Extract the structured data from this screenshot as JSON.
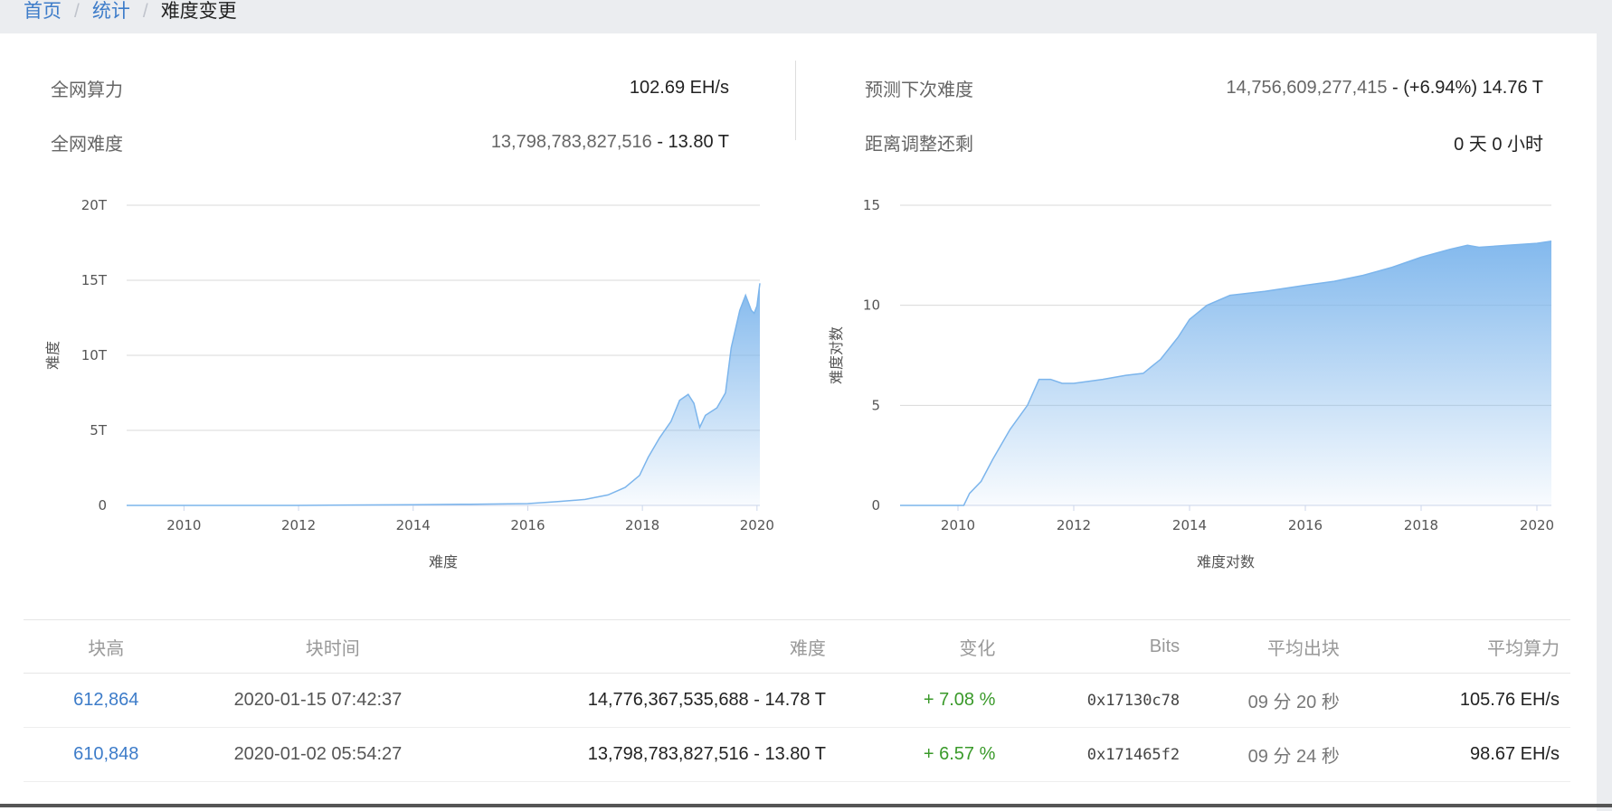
{
  "breadcrumb": {
    "home": "首页",
    "stats": "统计",
    "current": "难度变更"
  },
  "stats": {
    "hashrate_label": "全网算力",
    "hashrate_value": "102.69 EH/s",
    "difficulty_label": "全网难度",
    "difficulty_value": "13,798,783,827,516",
    "difficulty_suffix": " - 13.80 T",
    "next_label": "预测下次难度",
    "next_value": "14,756,609,277,415",
    "next_suffix": " - (+6.94%) 14.76 T",
    "remaining_label": "距离调整还剩",
    "remaining_value": "0 天 0 小时"
  },
  "chart_data": [
    {
      "type": "area",
      "title": "",
      "xlabel": "难度",
      "ylabel": "难度",
      "xlim": [
        2009.0,
        2020.05
      ],
      "ylim": [
        0,
        20
      ],
      "x_ticks": [
        "2010",
        "2012",
        "2014",
        "2016",
        "2018",
        "2020"
      ],
      "y_ticks": [
        "0",
        "5T",
        "10T",
        "15T",
        "20T"
      ],
      "grid": true,
      "color": "#7cb5ec",
      "series": [
        {
          "x": [
            2009.0,
            2012.0,
            2014.0,
            2015.0,
            2016.0,
            2016.5,
            2017.0,
            2017.4,
            2017.7,
            2017.95,
            2018.1,
            2018.3,
            2018.5,
            2018.65,
            2018.8,
            2018.9,
            2019.0,
            2019.1,
            2019.3,
            2019.45,
            2019.55,
            2019.7,
            2019.8,
            2019.9,
            2019.95,
            2020.0,
            2020.05
          ],
          "y": [
            0.0,
            0.0,
            0.05,
            0.08,
            0.12,
            0.25,
            0.4,
            0.7,
            1.2,
            2.0,
            3.2,
            4.5,
            5.6,
            7.0,
            7.4,
            6.8,
            5.2,
            6.0,
            6.5,
            7.5,
            10.5,
            13.0,
            14.0,
            13.0,
            12.8,
            13.3,
            14.8
          ]
        }
      ]
    },
    {
      "type": "area",
      "title": "",
      "xlabel": "难度对数",
      "ylabel": "难度对数",
      "xlim": [
        2009.0,
        2020.25
      ],
      "ylim": [
        0,
        15
      ],
      "x_ticks": [
        "2010",
        "2012",
        "2014",
        "2016",
        "2018",
        "2020"
      ],
      "y_ticks": [
        "0",
        "5",
        "10",
        "15"
      ],
      "grid": true,
      "color": "#7cb5ec",
      "series": [
        {
          "x": [
            2009.0,
            2010.1,
            2010.2,
            2010.4,
            2010.6,
            2010.9,
            2011.2,
            2011.4,
            2011.6,
            2011.8,
            2012.0,
            2012.5,
            2012.9,
            2013.2,
            2013.5,
            2013.8,
            2014.0,
            2014.3,
            2014.7,
            2015.3,
            2016.0,
            2016.5,
            2017.0,
            2017.5,
            2018.0,
            2018.5,
            2018.8,
            2019.0,
            2019.5,
            2020.0,
            2020.25
          ],
          "y": [
            0.0,
            0.0,
            0.6,
            1.2,
            2.3,
            3.8,
            5.0,
            6.3,
            6.3,
            6.1,
            6.1,
            6.3,
            6.5,
            6.6,
            7.3,
            8.4,
            9.3,
            10.0,
            10.5,
            10.7,
            11.0,
            11.2,
            11.5,
            11.9,
            12.4,
            12.8,
            13.0,
            12.9,
            13.0,
            13.1,
            13.2
          ]
        }
      ]
    }
  ],
  "table": {
    "headers": [
      "块高",
      "块时间",
      "难度",
      "变化",
      "Bits",
      "平均出块",
      "平均算力"
    ],
    "rows": [
      [
        "612,864",
        "2020-01-15 07:42:37",
        "14,776,367,535,688 - 14.78 T",
        "+ 7.08 %",
        "0x17130c78",
        "09 分 20 秒",
        "105.76 EH/s"
      ],
      [
        "610,848",
        "2020-01-02 05:54:27",
        "13,798,783,827,516 - 13.80 T",
        "+ 6.57 %",
        "0x171465f2",
        "09 分 24 秒",
        "98.67 EH/s"
      ]
    ]
  }
}
